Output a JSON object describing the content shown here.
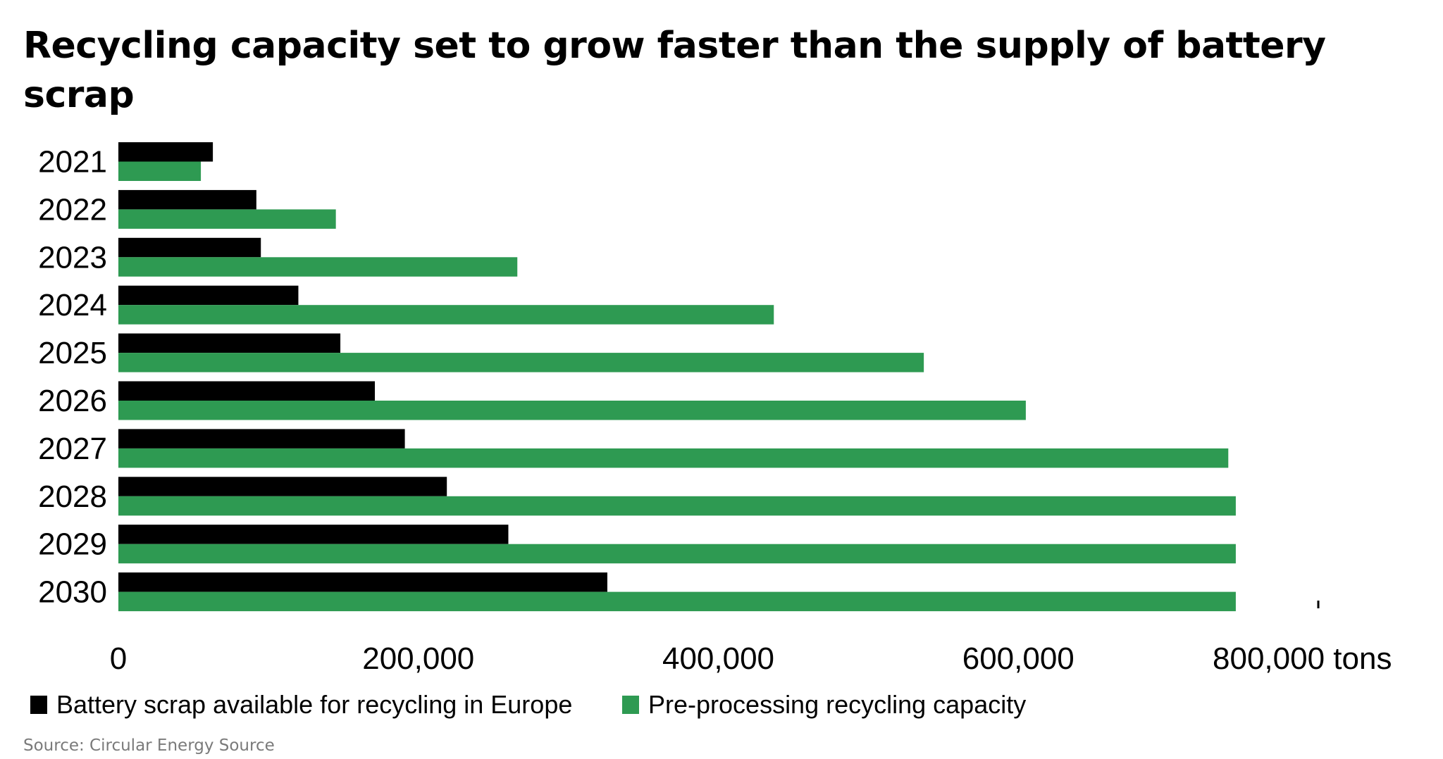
{
  "chart_data": {
    "type": "bar",
    "orientation": "horizontal",
    "title": "Recycling capacity set to grow faster than the supply of battery scrap",
    "categories": [
      "2021",
      "2022",
      "2023",
      "2024",
      "2025",
      "2026",
      "2027",
      "2028",
      "2029",
      "2030"
    ],
    "series": [
      {
        "name": "Battery scrap available for recycling in Europe",
        "color": "#000000",
        "values": [
          63000,
          92000,
          95000,
          120000,
          148000,
          171000,
          191000,
          219000,
          260000,
          326000
        ]
      },
      {
        "name": "Pre-processing recycling capacity",
        "color": "#2e9a52",
        "values": [
          55000,
          145000,
          266000,
          437000,
          537000,
          605000,
          740000,
          745000,
          745000,
          745000
        ]
      }
    ],
    "xlim": [
      0,
      800000
    ],
    "xticks": [
      0,
      200000,
      400000,
      600000,
      800000
    ],
    "xtick_labels": [
      "0",
      "200,000",
      "400,000",
      "600,000",
      "800,000 tons"
    ],
    "grid": false,
    "legend_position": "bottom",
    "source": "Source: Circular Energy Source"
  }
}
